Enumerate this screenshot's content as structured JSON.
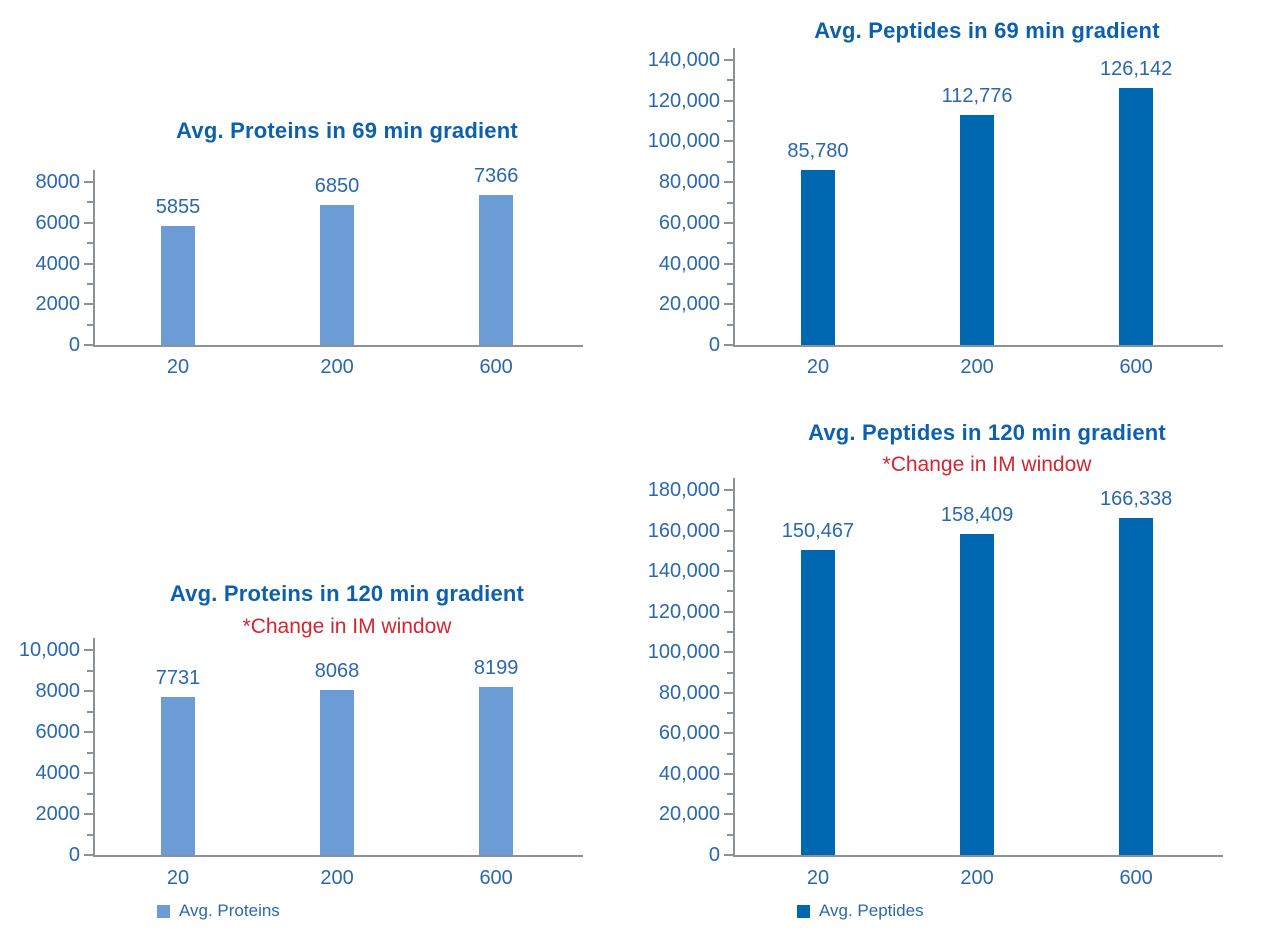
{
  "colors": {
    "title_blue": "#0C60AC",
    "label_blue": "#2A68AE",
    "subtitle_red": "#D22630",
    "axis_gray": "#8D9298",
    "proteins_bar_blue": "#6C9CD6",
    "peptides_bar_blue": "#0067B1"
  },
  "chart_data": [
    {
      "id": "avg-proteins-69",
      "type": "bar",
      "title": "Avg. Proteins in 69 min gradient",
      "subtitle": "",
      "categories": [
        "20",
        "200",
        "600"
      ],
      "series": [
        {
          "name": "Avg. Proteins",
          "values": [
            5855,
            6850,
            7366
          ]
        }
      ],
      "data_labels": [
        "5855",
        "6850",
        "7366"
      ],
      "ylim": [
        0,
        8000
      ],
      "ytick_labels": [
        "0",
        "2000",
        "4000",
        "6000",
        "8000"
      ],
      "minor_ticks_between_majors": 1,
      "grid": false,
      "bar_color": "#6C9CD6",
      "legend": null
    },
    {
      "id": "avg-peptides-69",
      "type": "bar",
      "title": "Avg. Peptides in 69 min gradient",
      "subtitle": "",
      "categories": [
        "20",
        "200",
        "600"
      ],
      "series": [
        {
          "name": "Avg. Peptides",
          "values": [
            85780,
            112776,
            126142
          ]
        }
      ],
      "data_labels": [
        "85,780",
        "112,776",
        "126,142"
      ],
      "ylim": [
        0,
        140000
      ],
      "ytick_labels": [
        "0",
        "20,000",
        "40,000",
        "60,000",
        "80,000",
        "100,000",
        "120,000",
        "140,000"
      ],
      "minor_ticks_between_majors": 1,
      "grid": false,
      "bar_color": "#0067B1",
      "legend": null
    },
    {
      "id": "avg-proteins-120",
      "type": "bar",
      "title": "Avg. Proteins in 120 min gradient",
      "subtitle": "*Change in IM window",
      "categories": [
        "20",
        "200",
        "600"
      ],
      "series": [
        {
          "name": "Avg. Proteins",
          "values": [
            7731,
            8068,
            8199
          ]
        }
      ],
      "data_labels": [
        "7731",
        "8068",
        "8199"
      ],
      "ylim": [
        0,
        10000
      ],
      "ytick_labels": [
        "0",
        "2000",
        "4000",
        "6000",
        "8000",
        "10,000"
      ],
      "minor_ticks_between_majors": 1,
      "grid": false,
      "bar_color": "#6C9CD6",
      "legend": {
        "label": "Avg. Proteins",
        "swatch_color": "#6C9CD6",
        "position": "bottom-left"
      }
    },
    {
      "id": "avg-peptides-120",
      "type": "bar",
      "title": "Avg. Peptides in 120 min gradient",
      "subtitle": "*Change in IM window",
      "categories": [
        "20",
        "200",
        "600"
      ],
      "series": [
        {
          "name": "Avg. Peptides",
          "values": [
            150467,
            158409,
            166338
          ]
        }
      ],
      "data_labels": [
        "150,467",
        "158,409",
        "166,338"
      ],
      "ylim": [
        0,
        180000
      ],
      "ytick_labels": [
        "0",
        "20,000",
        "40,000",
        "60,000",
        "80,000",
        "100,000",
        "120,000",
        "140,000",
        "160,000",
        "180,000"
      ],
      "minor_ticks_between_majors": 1,
      "grid": false,
      "bar_color": "#0067B1",
      "legend": {
        "label": "Avg. Peptides",
        "swatch_color": "#0067B1",
        "position": "bottom-left"
      }
    }
  ]
}
